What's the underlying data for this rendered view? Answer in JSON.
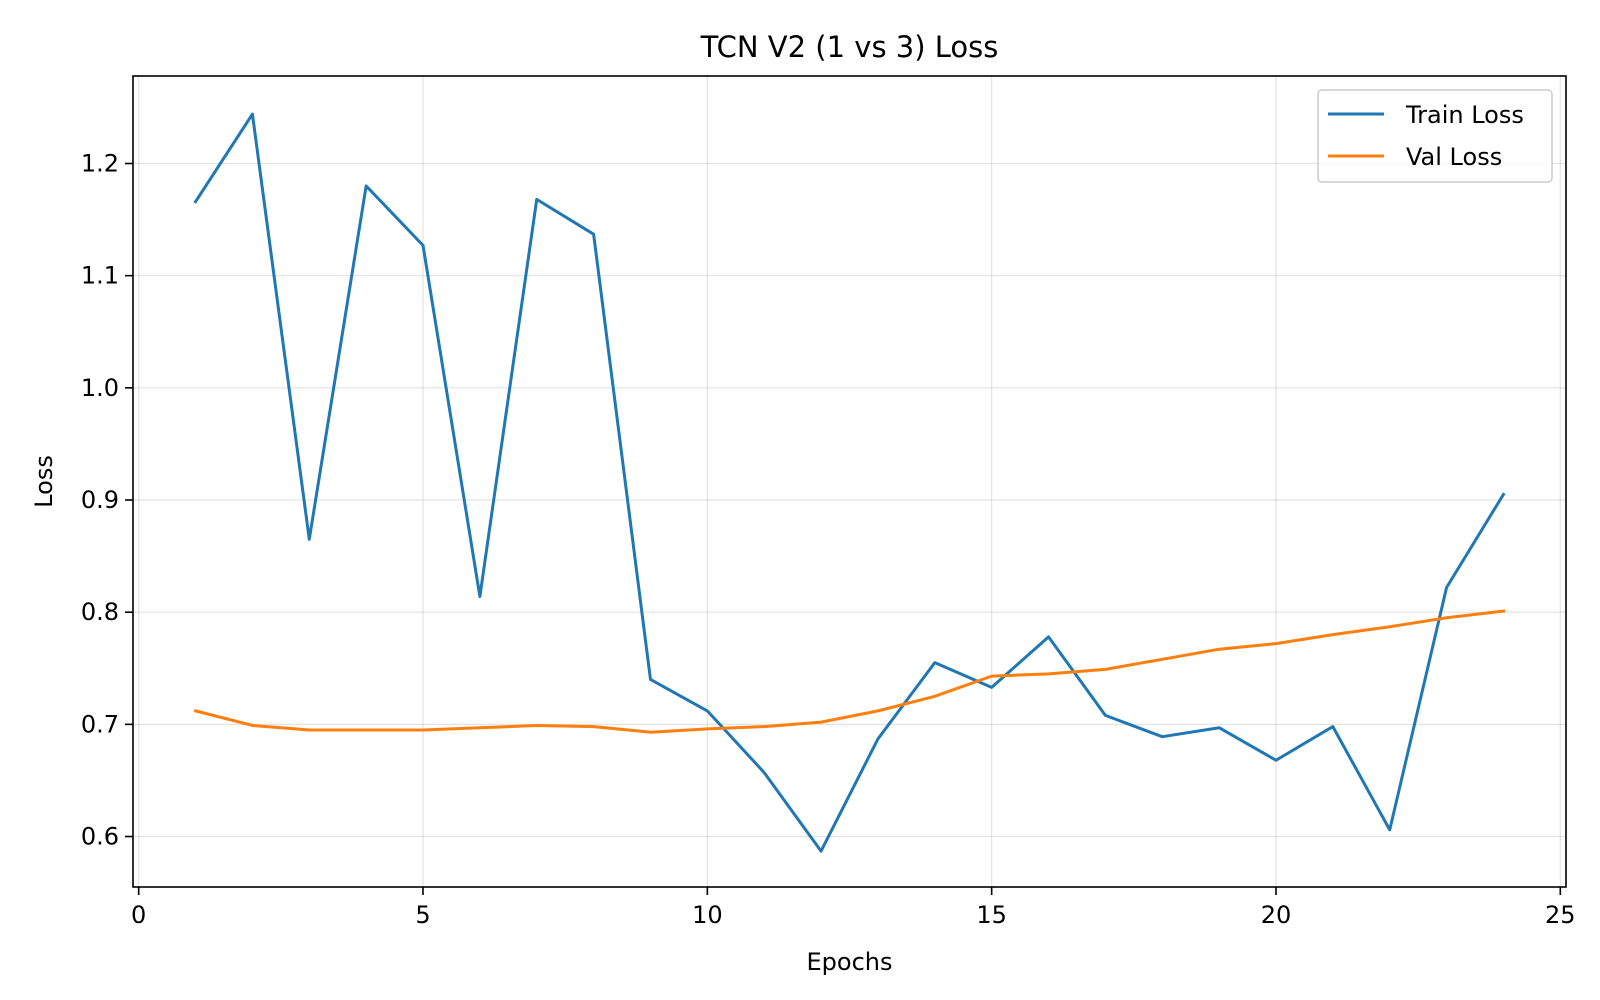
{
  "chart_data": {
    "type": "line",
    "title": "TCN V2 (1 vs 3) Loss",
    "xlabel": "Epochs",
    "ylabel": "Loss",
    "xlim": [
      -0.1,
      25.1
    ],
    "ylim": [
      0.555,
      1.278
    ],
    "xticks": [
      0,
      5,
      10,
      15,
      20,
      25
    ],
    "yticks": [
      0.6,
      0.7,
      0.8,
      0.9,
      1.0,
      1.1,
      1.2
    ],
    "grid": true,
    "legend_position": "top-right",
    "x": [
      1,
      2,
      3,
      4,
      5,
      6,
      7,
      8,
      9,
      10,
      11,
      12,
      13,
      14,
      15,
      16,
      17,
      18,
      19,
      20,
      21,
      22,
      23,
      24
    ],
    "series": [
      {
        "name": "Train Loss",
        "color": "#1f77b4",
        "values": [
          1.166,
          1.244,
          0.865,
          1.18,
          1.127,
          0.814,
          1.168,
          1.137,
          0.74,
          0.712,
          0.657,
          0.587,
          0.687,
          0.755,
          0.733,
          0.778,
          0.708,
          0.689,
          0.697,
          0.668,
          0.698,
          0.606,
          0.822,
          0.905
        ]
      },
      {
        "name": "Val Loss",
        "color": "#ff7f0e",
        "values": [
          0.712,
          0.699,
          0.695,
          0.695,
          0.695,
          0.697,
          0.699,
          0.698,
          0.693,
          0.696,
          0.698,
          0.702,
          0.712,
          0.725,
          0.743,
          0.745,
          0.749,
          0.758,
          0.767,
          0.772,
          0.78,
          0.787,
          0.795,
          0.801
        ]
      }
    ]
  }
}
